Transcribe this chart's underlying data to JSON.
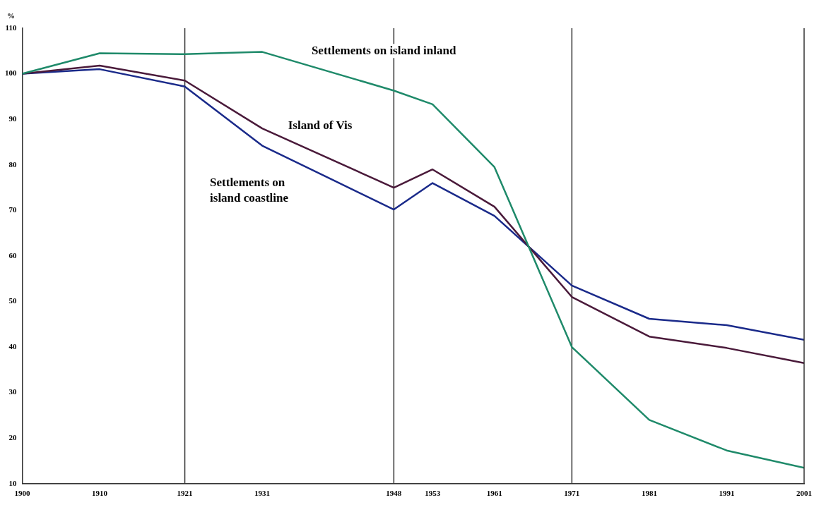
{
  "chart_data": {
    "type": "line",
    "ylabel": "%",
    "x": [
      1900,
      1910,
      1921,
      1931,
      1948,
      1953,
      1961,
      1971,
      1981,
      1991,
      2001
    ],
    "series": [
      {
        "color": "#1f8a6a",
        "values": [
          100,
          104.5,
          104.3,
          104.8,
          96.3,
          93.3,
          79.5,
          40,
          24,
          17.3,
          13.5
        ]
      },
      {
        "color": "#4a1a3a",
        "values": [
          100,
          101.8,
          98.5,
          88,
          75,
          79,
          70.8,
          51,
          42.3,
          39.8,
          36.5
        ]
      },
      {
        "color": "#1a2a8a",
        "values": [
          100,
          101,
          97.2,
          84.2,
          70.2,
          76,
          68.8,
          53.5,
          46.2,
          44.8,
          41.6
        ]
      }
    ],
    "xlim": [
      1900,
      2001
    ],
    "xticks": [
      1900,
      1910,
      1921,
      1931,
      1948,
      1953,
      1961,
      1971,
      1981,
      1991,
      2001
    ],
    "ylim": [
      10,
      110
    ],
    "yticks": [
      10,
      20,
      30,
      40,
      50,
      60,
      70,
      80,
      90,
      100,
      110
    ],
    "ref_lines": [
      {
        "axis": "x",
        "value": 1921
      },
      {
        "axis": "x",
        "value": 1948
      },
      {
        "axis": "x",
        "value": 1971
      }
    ],
    "annotations": [
      "Settlements on island inland",
      "Island of Vis",
      "Settlements on\nisland coastline"
    ],
    "grid": false,
    "legend": false,
    "marker": "none",
    "line_style": "solid"
  }
}
